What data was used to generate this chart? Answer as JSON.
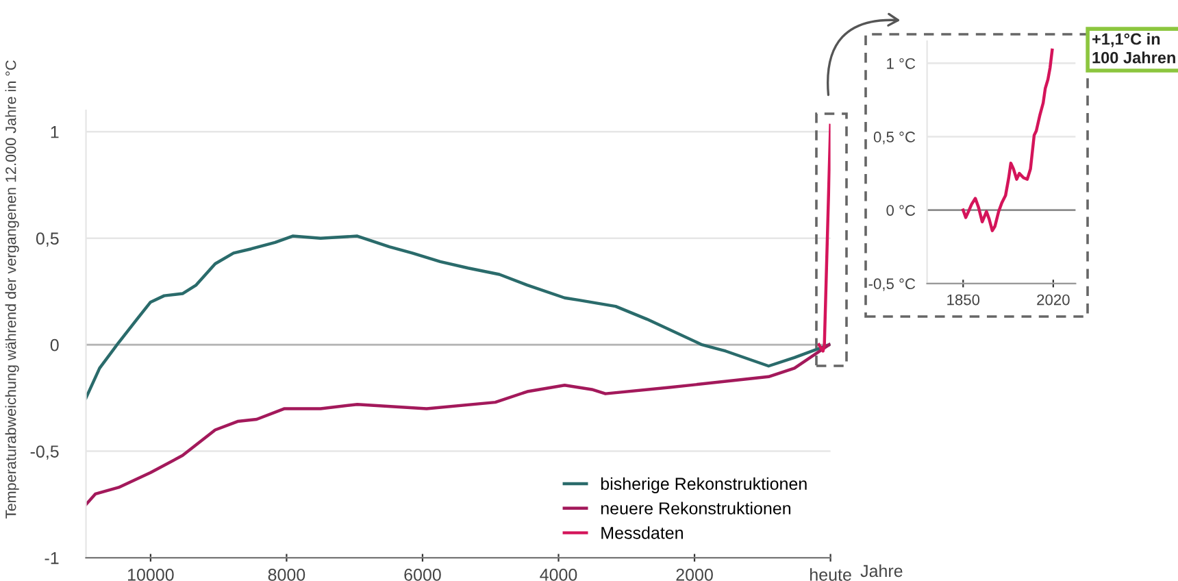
{
  "chart_data": [
    {
      "type": "line",
      "ylabel": "Temperaturabweichung während der vergangenen 12.000 Jahre in °C",
      "xlabel": "Jahre",
      "xlim": [
        10950,
        0
      ],
      "xticks": [
        10000,
        8000,
        6000,
        4000,
        2000,
        {
          "value": 0,
          "label": "heute"
        }
      ],
      "ylim": [
        -1,
        1.1
      ],
      "yticks": [
        {
          "value": -1,
          "label": "-1"
        },
        {
          "value": -0.5,
          "label": "-0,5"
        },
        0,
        {
          "value": 0.5,
          "label": "0,5"
        },
        1
      ],
      "grid": "y",
      "legend": "bottom right",
      "ref_lines": [
        {
          "axis": "y",
          "value": 0,
          "color": "#b4b4b4"
        }
      ],
      "series": [
        {
          "name": "bisherige Rekonstruktionen",
          "color": "#2a6b6b",
          "x": [
            10950,
            10750,
            10470,
            10200,
            10000,
            9800,
            9530,
            9330,
            9050,
            8780,
            8520,
            8170,
            7910,
            7500,
            6960,
            6490,
            6150,
            5740,
            5330,
            4870,
            4460,
            3910,
            3710,
            3160,
            2700,
            1890,
            1540,
            910,
            530,
            20
          ],
          "values": [
            -0.25,
            -0.11,
            0.01,
            0.12,
            0.2,
            0.23,
            0.24,
            0.28,
            0.38,
            0.43,
            0.45,
            0.48,
            0.51,
            0.5,
            0.51,
            0.46,
            0.43,
            0.39,
            0.36,
            0.33,
            0.28,
            0.22,
            0.21,
            0.18,
            0.12,
            0,
            -0.03,
            -0.1,
            -0.06,
            0
          ]
        },
        {
          "name": "neuere Rekonstruktionen",
          "color": "#a3195b",
          "x": [
            10950,
            10810,
            10470,
            10000,
            9530,
            9050,
            8720,
            8440,
            8030,
            7500,
            6960,
            5940,
            4930,
            4460,
            3910,
            3510,
            3310,
            2350,
            910,
            530,
            20
          ],
          "values": [
            -0.75,
            -0.7,
            -0.67,
            -0.6,
            -0.52,
            -0.4,
            -0.36,
            -0.35,
            -0.3,
            -0.3,
            -0.28,
            -0.3,
            -0.27,
            -0.22,
            -0.19,
            -0.21,
            -0.23,
            -0.2,
            -0.15,
            -0.11,
            0
          ]
        },
        {
          "name": "Messdaten",
          "color": "#d4145a",
          "x": [
            170,
            110,
            90,
            0
          ],
          "values": [
            0,
            -0.03,
            0,
            1.03
          ]
        }
      ]
    },
    {
      "type": "line",
      "xlim": [
        1782,
        2062
      ],
      "xticks": [
        1850,
        2020
      ],
      "ylim": [
        -0.5,
        1.15
      ],
      "yticks": [
        {
          "value": -0.5,
          "label": "-0,5 °C"
        },
        {
          "value": 0,
          "label": "0 °C"
        },
        {
          "value": 0.5,
          "label": "0,5 °C"
        },
        {
          "value": 1,
          "label": "1 °C"
        }
      ],
      "grid": "y",
      "annotations": [
        "+1,1°C in 100 Jahren"
      ],
      "ref_lines": [
        {
          "axis": "y",
          "value": 0,
          "color": "#8c8c8c"
        }
      ],
      "series": [
        {
          "color": "#d4145a",
          "x": [
            1850,
            1855,
            1860,
            1866,
            1873,
            1879,
            1886,
            1894,
            1899,
            1905,
            1910,
            1917,
            1923,
            1930,
            1936,
            1940,
            1945,
            1951,
            1956,
            1964,
            1971,
            1977,
            1984,
            1988,
            1995,
            2001,
            2005,
            2010,
            2014,
            2018
          ],
          "values": [
            0,
            -0.05,
            -0.01,
            0.04,
            0.08,
            0.02,
            -0.08,
            -0.01,
            -0.06,
            -0.14,
            -0.11,
            -0.01,
            0.05,
            0.1,
            0.22,
            0.32,
            0.28,
            0.21,
            0.25,
            0.22,
            0.21,
            0.28,
            0.51,
            0.54,
            0.65,
            0.73,
            0.83,
            0.89,
            0.97,
            1.09
          ]
        }
      ]
    }
  ]
}
